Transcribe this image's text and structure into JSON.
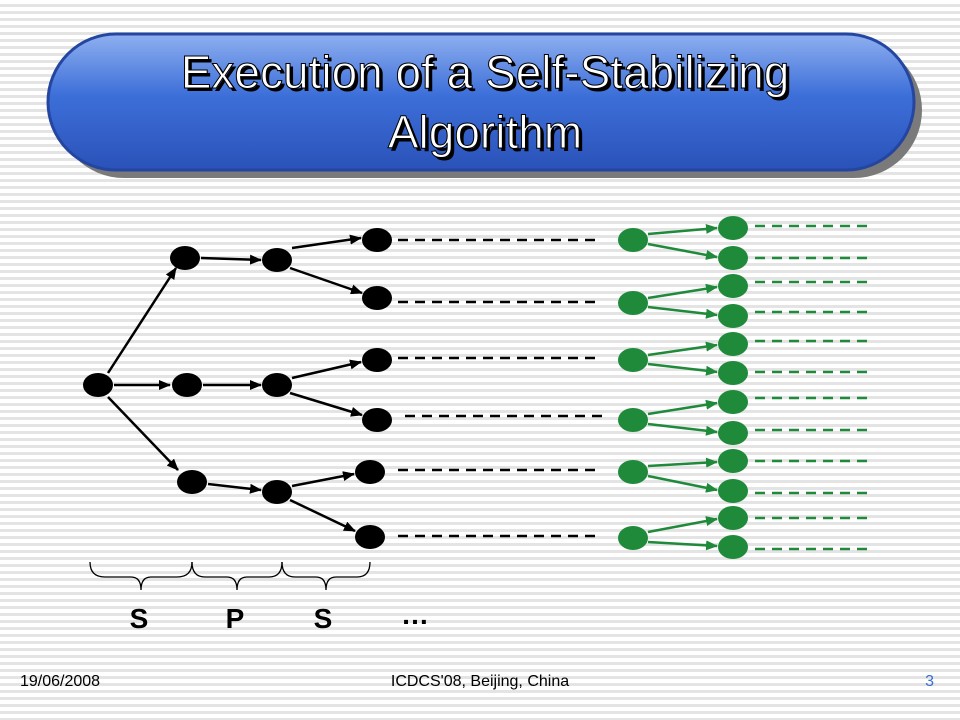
{
  "title": "Execution of a Self-Stabilizing Algorithm",
  "phases": [
    "S",
    "P",
    "S",
    "…"
  ],
  "footer": {
    "date": "19/06/2008",
    "venue": "ICDCS'08, Beijing, China",
    "page": "3"
  }
}
